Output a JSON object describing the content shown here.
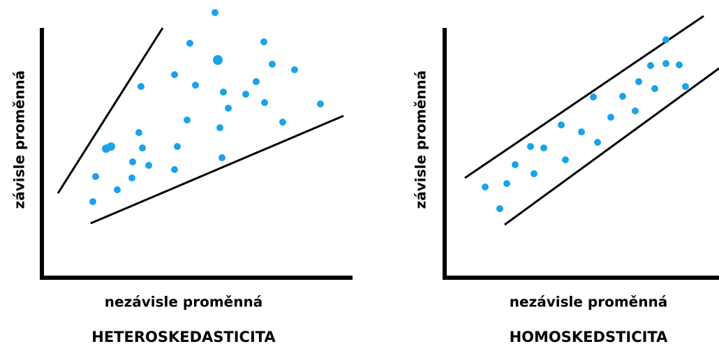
{
  "panels": [
    {
      "y_label": "závisle proměnná",
      "x_label": "nezávisle proměnná",
      "title": "HETEROSKEDASTICITA"
    },
    {
      "y_label": "závisle proměnná",
      "x_label": "nezávisle proměnná",
      "title": "HOMOSKEDSTICITA"
    }
  ]
}
